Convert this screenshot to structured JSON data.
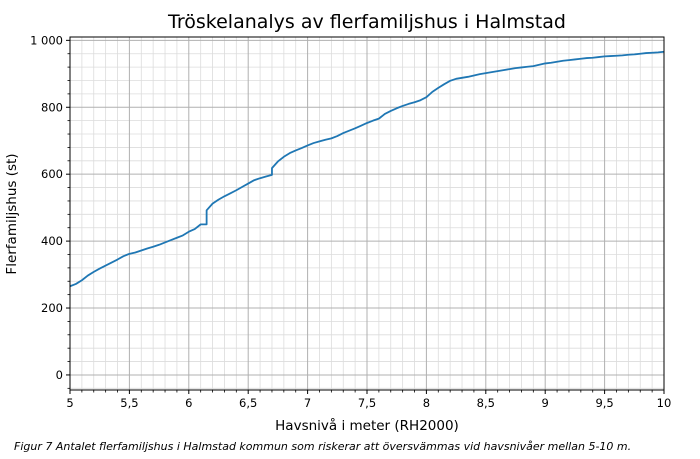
{
  "chart_data": {
    "type": "line",
    "title": "Tröskelanalys av flerfamiljshus i Halmstad",
    "xlabel": "Havsnivå i meter (RH2000)",
    "ylabel": "Flerfamiljshus (st)",
    "xlim": [
      5,
      10
    ],
    "ylim": [
      -45,
      1010
    ],
    "x_ticks": [
      5,
      5.5,
      6,
      6.5,
      7,
      7.5,
      8,
      8.5,
      9,
      9.5,
      10
    ],
    "x_tick_labels": [
      "5",
      "5,5",
      "6",
      "6,5",
      "7",
      "7,5",
      "8",
      "8,5",
      "9",
      "9,5",
      "10"
    ],
    "y_ticks": [
      0,
      200,
      400,
      600,
      800,
      1000
    ],
    "y_tick_labels": [
      "0",
      "200",
      "400",
      "600",
      "800",
      "1 000"
    ],
    "grid": true,
    "minor_grid": true,
    "line_color": "#1f77b4",
    "series": [
      {
        "x": [
          5.0,
          5.05,
          5.1,
          5.15,
          5.2,
          5.25,
          5.3,
          5.35,
          5.4,
          5.45,
          5.5,
          5.55,
          5.6,
          5.65,
          5.7,
          5.75,
          5.8,
          5.85,
          5.9,
          5.95,
          6.0,
          6.05,
          6.1,
          6.15,
          6.15,
          6.2,
          6.25,
          6.3,
          6.35,
          6.4,
          6.45,
          6.5,
          6.55,
          6.6,
          6.65,
          6.7,
          6.7,
          6.75,
          6.8,
          6.85,
          6.9,
          6.95,
          7.0,
          7.05,
          7.1,
          7.15,
          7.2,
          7.25,
          7.3,
          7.35,
          7.4,
          7.45,
          7.5,
          7.55,
          7.6,
          7.65,
          7.7,
          7.75,
          7.8,
          7.85,
          7.9,
          7.95,
          8.0,
          8.05,
          8.1,
          8.15,
          8.2,
          8.25,
          8.3,
          8.35,
          8.4,
          8.45,
          8.5,
          8.55,
          8.6,
          8.65,
          8.7,
          8.75,
          8.8,
          8.85,
          8.9,
          8.95,
          9.0,
          9.05,
          9.1,
          9.15,
          9.2,
          9.25,
          9.3,
          9.35,
          9.4,
          9.45,
          9.5,
          9.55,
          9.6,
          9.65,
          9.7,
          9.75,
          9.8,
          9.85,
          9.9,
          9.95,
          10.0
        ],
        "y": [
          265,
          272,
          283,
          297,
          308,
          318,
          327,
          336,
          345,
          355,
          362,
          366,
          372,
          378,
          383,
          389,
          396,
          403,
          410,
          417,
          428,
          436,
          450,
          450,
          492,
          512,
          524,
          534,
          543,
          552,
          562,
          572,
          582,
          588,
          593,
          598,
          618,
          638,
          652,
          663,
          671,
          678,
          686,
          693,
          698,
          703,
          707,
          714,
          723,
          730,
          737,
          745,
          753,
          760,
          766,
          780,
          789,
          797,
          804,
          810,
          815,
          821,
          830,
          846,
          858,
          869,
          879,
          885,
          888,
          891,
          895,
          899,
          902,
          905,
          908,
          911,
          914,
          917,
          919,
          921,
          923,
          927,
          931,
          933,
          936,
          939,
          941,
          943,
          945,
          947,
          948,
          950,
          952,
          953,
          954,
          955,
          957,
          958,
          960,
          962,
          963,
          964,
          966
        ]
      }
    ]
  },
  "caption": "Figur 7 Antalet flerfamiljshus i Halmstad kommun som riskerar att översvämmas vid havsnivåer mellan 5-10 m."
}
